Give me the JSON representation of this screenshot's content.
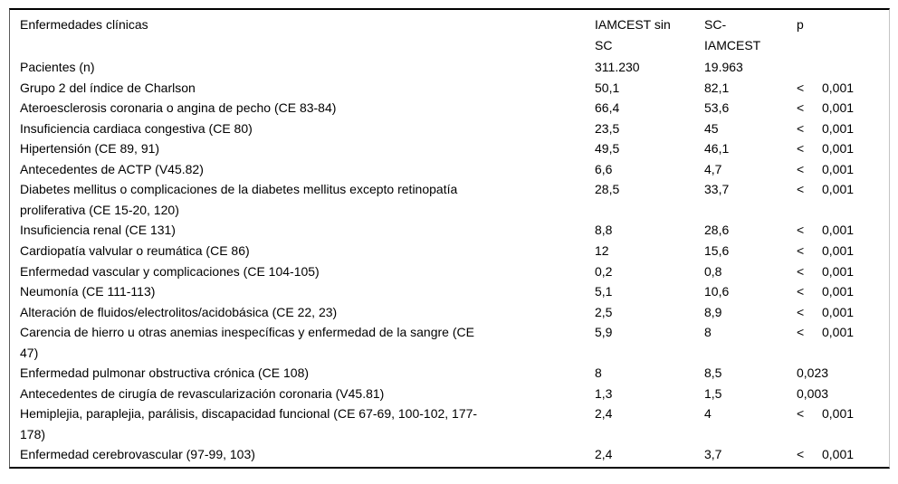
{
  "table": {
    "columns": [
      "Enfermedades clínicas",
      "IAMCEST sin\nSC",
      "SC-\nIAMCEST",
      "p"
    ],
    "rows": [
      {
        "label": "Pacientes (n)",
        "v1": "311.230",
        "v2": "19.963",
        "p_sign": "",
        "p_value": ""
      },
      {
        "label": "Grupo 2 del índice de Charlson",
        "v1": "50,1",
        "v2": "82,1",
        "p_sign": "<",
        "p_value": "0,001"
      },
      {
        "label": "Ateroesclerosis coronaria o angina de pecho (CE 83-84)",
        "v1": "66,4",
        "v2": "53,6",
        "p_sign": "<",
        "p_value": "0,001"
      },
      {
        "label": "Insuficiencia cardiaca congestiva (CE 80)",
        "v1": "23,5",
        "v2": "45",
        "p_sign": "<",
        "p_value": "0,001"
      },
      {
        "label": "Hipertensión (CE 89, 91)",
        "v1": "49,5",
        "v2": "46,1",
        "p_sign": "<",
        "p_value": "0,001"
      },
      {
        "label": "Antecedentes de ACTP (V45.82)",
        "v1": "6,6",
        "v2": "4,7",
        "p_sign": "<",
        "p_value": "0,001"
      },
      {
        "label": "Diabetes mellitus o complicaciones de la diabetes mellitus excepto retinopatía\nproliferativa (CE 15-20, 120)",
        "v1": "28,5",
        "v2": "33,7",
        "p_sign": "<",
        "p_value": "0,001"
      },
      {
        "label": "Insuficiencia renal (CE 131)",
        "v1": "8,8",
        "v2": "28,6",
        "p_sign": "<",
        "p_value": "0,001"
      },
      {
        "label": "Cardiopatía valvular o reumática (CE 86)",
        "v1": "12",
        "v2": "15,6",
        "p_sign": "<",
        "p_value": "0,001"
      },
      {
        "label": "Enfermedad vascular y complicaciones (CE 104-105)",
        "v1": "0,2",
        "v2": "0,8",
        "p_sign": "<",
        "p_value": "0,001"
      },
      {
        "label": "Neumonía (CE 111-113)",
        "v1": "5,1",
        "v2": "10,6",
        "p_sign": "<",
        "p_value": "0,001"
      },
      {
        "label": "Alteración de fluidos/electrolitos/acidobásica (CE 22, 23)",
        "v1": "2,5",
        "v2": "8,9",
        "p_sign": "<",
        "p_value": "0,001"
      },
      {
        "label": "Carencia de hierro u otras anemias inespecíficas y enfermedad de la sangre (CE\n47)",
        "v1": "5,9",
        "v2": "8",
        "p_sign": "<",
        "p_value": "0,001"
      },
      {
        "label": "Enfermedad pulmonar obstructiva crónica (CE 108)",
        "v1": "8",
        "v2": "8,5",
        "p_sign": "",
        "p_value": "0,023"
      },
      {
        "label": "Antecedentes de cirugía de revascularización coronaria (V45.81)",
        "v1": "1,3",
        "v2": "1,5",
        "p_sign": "",
        "p_value": "0,003"
      },
      {
        "label": "Hemiplejia, paraplejia, parálisis, discapacidad funcional (CE 67-69, 100-102, 177-\n178)",
        "v1": "2,4",
        "v2": "4",
        "p_sign": "<",
        "p_value": "0,001"
      },
      {
        "label": "Enfermedad cerebrovascular (97-99, 103)",
        "v1": "2,4",
        "v2": "3,7",
        "p_sign": "<",
        "p_value": "0,001"
      }
    ]
  }
}
